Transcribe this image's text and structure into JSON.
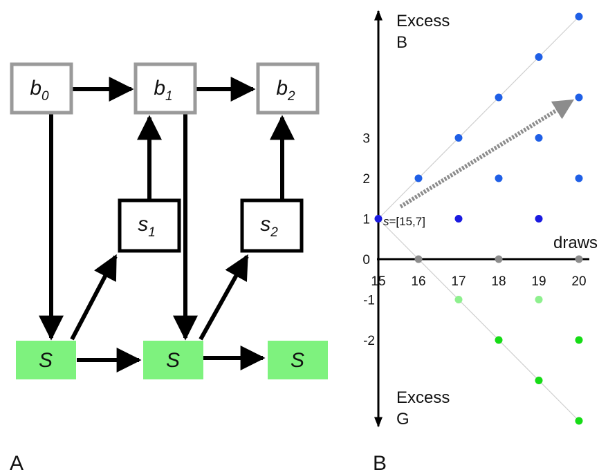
{
  "panels": {
    "a": "A",
    "b": "B"
  },
  "belief_nodes": [
    {
      "main": "b",
      "sub": "0"
    },
    {
      "main": "b",
      "sub": "1"
    },
    {
      "main": "b",
      "sub": "2"
    }
  ],
  "sample_nodes": [
    {
      "main": "s",
      "sub": "1"
    },
    {
      "main": "s",
      "sub": "2"
    }
  ],
  "state_nodes": [
    {
      "label": "S"
    },
    {
      "label": "S"
    },
    {
      "label": "S"
    }
  ],
  "colors": {
    "belief_border": "#9a9a9a",
    "state_fill": "#7ef27e",
    "blue_point": "#1f5fe6",
    "dark_blue_point": "#1a1ae0",
    "green_point": "#16dc16",
    "light_green_point": "#8ef08e",
    "gray_point": "#8c8c8c",
    "arrow_gray": "#8c8c8c"
  },
  "chart_data": {
    "type": "scatter",
    "title": "",
    "xlabel": "draws",
    "ylabel_top": "Excess",
    "ylabel_top2": "B",
    "ylabel_bottom": "Excess",
    "ylabel_bottom2": "G",
    "x_ticks": [
      "15",
      "16",
      "17",
      "18",
      "19",
      "20"
    ],
    "y_ticks": [
      "3",
      "2",
      "1",
      "0",
      "-1",
      "-2"
    ],
    "xlim": [
      15,
      20
    ],
    "ylim": [
      -4,
      6
    ],
    "annotation": {
      "prefix": "s",
      "text": "=[15,7]",
      "x": 15,
      "y": 1
    },
    "points": [
      {
        "x": 15,
        "y": 1,
        "color": "dark_blue_point"
      },
      {
        "x": 16,
        "y": 2,
        "color": "blue_point"
      },
      {
        "x": 17,
        "y": 3,
        "color": "blue_point"
      },
      {
        "x": 17,
        "y": 1,
        "color": "dark_blue_point"
      },
      {
        "x": 18,
        "y": 4,
        "color": "blue_point"
      },
      {
        "x": 18,
        "y": 2,
        "color": "blue_point"
      },
      {
        "x": 19,
        "y": 5,
        "color": "blue_point"
      },
      {
        "x": 19,
        "y": 3,
        "color": "blue_point"
      },
      {
        "x": 19,
        "y": 1,
        "color": "dark_blue_point"
      },
      {
        "x": 20,
        "y": 6,
        "color": "blue_point"
      },
      {
        "x": 20,
        "y": 4,
        "color": "blue_point"
      },
      {
        "x": 20,
        "y": 2,
        "color": "blue_point"
      },
      {
        "x": 16,
        "y": 0,
        "color": "gray_point"
      },
      {
        "x": 18,
        "y": 0,
        "color": "gray_point"
      },
      {
        "x": 20,
        "y": 0,
        "color": "gray_point"
      },
      {
        "x": 17,
        "y": -1,
        "color": "light_green_point"
      },
      {
        "x": 19,
        "y": -1,
        "color": "light_green_point"
      },
      {
        "x": 18,
        "y": -2,
        "color": "green_point"
      },
      {
        "x": 20,
        "y": -2,
        "color": "green_point"
      },
      {
        "x": 19,
        "y": -3,
        "color": "green_point"
      },
      {
        "x": 20,
        "y": -4,
        "color": "green_point"
      }
    ],
    "guide_lines": [
      {
        "from": [
          15,
          1
        ],
        "to": [
          20,
          6
        ]
      },
      {
        "from": [
          15,
          1
        ],
        "to": [
          20,
          -4
        ]
      }
    ],
    "trend_arrow": {
      "from": [
        15.5,
        1.3
      ],
      "to": [
        20,
        4
      ]
    }
  }
}
